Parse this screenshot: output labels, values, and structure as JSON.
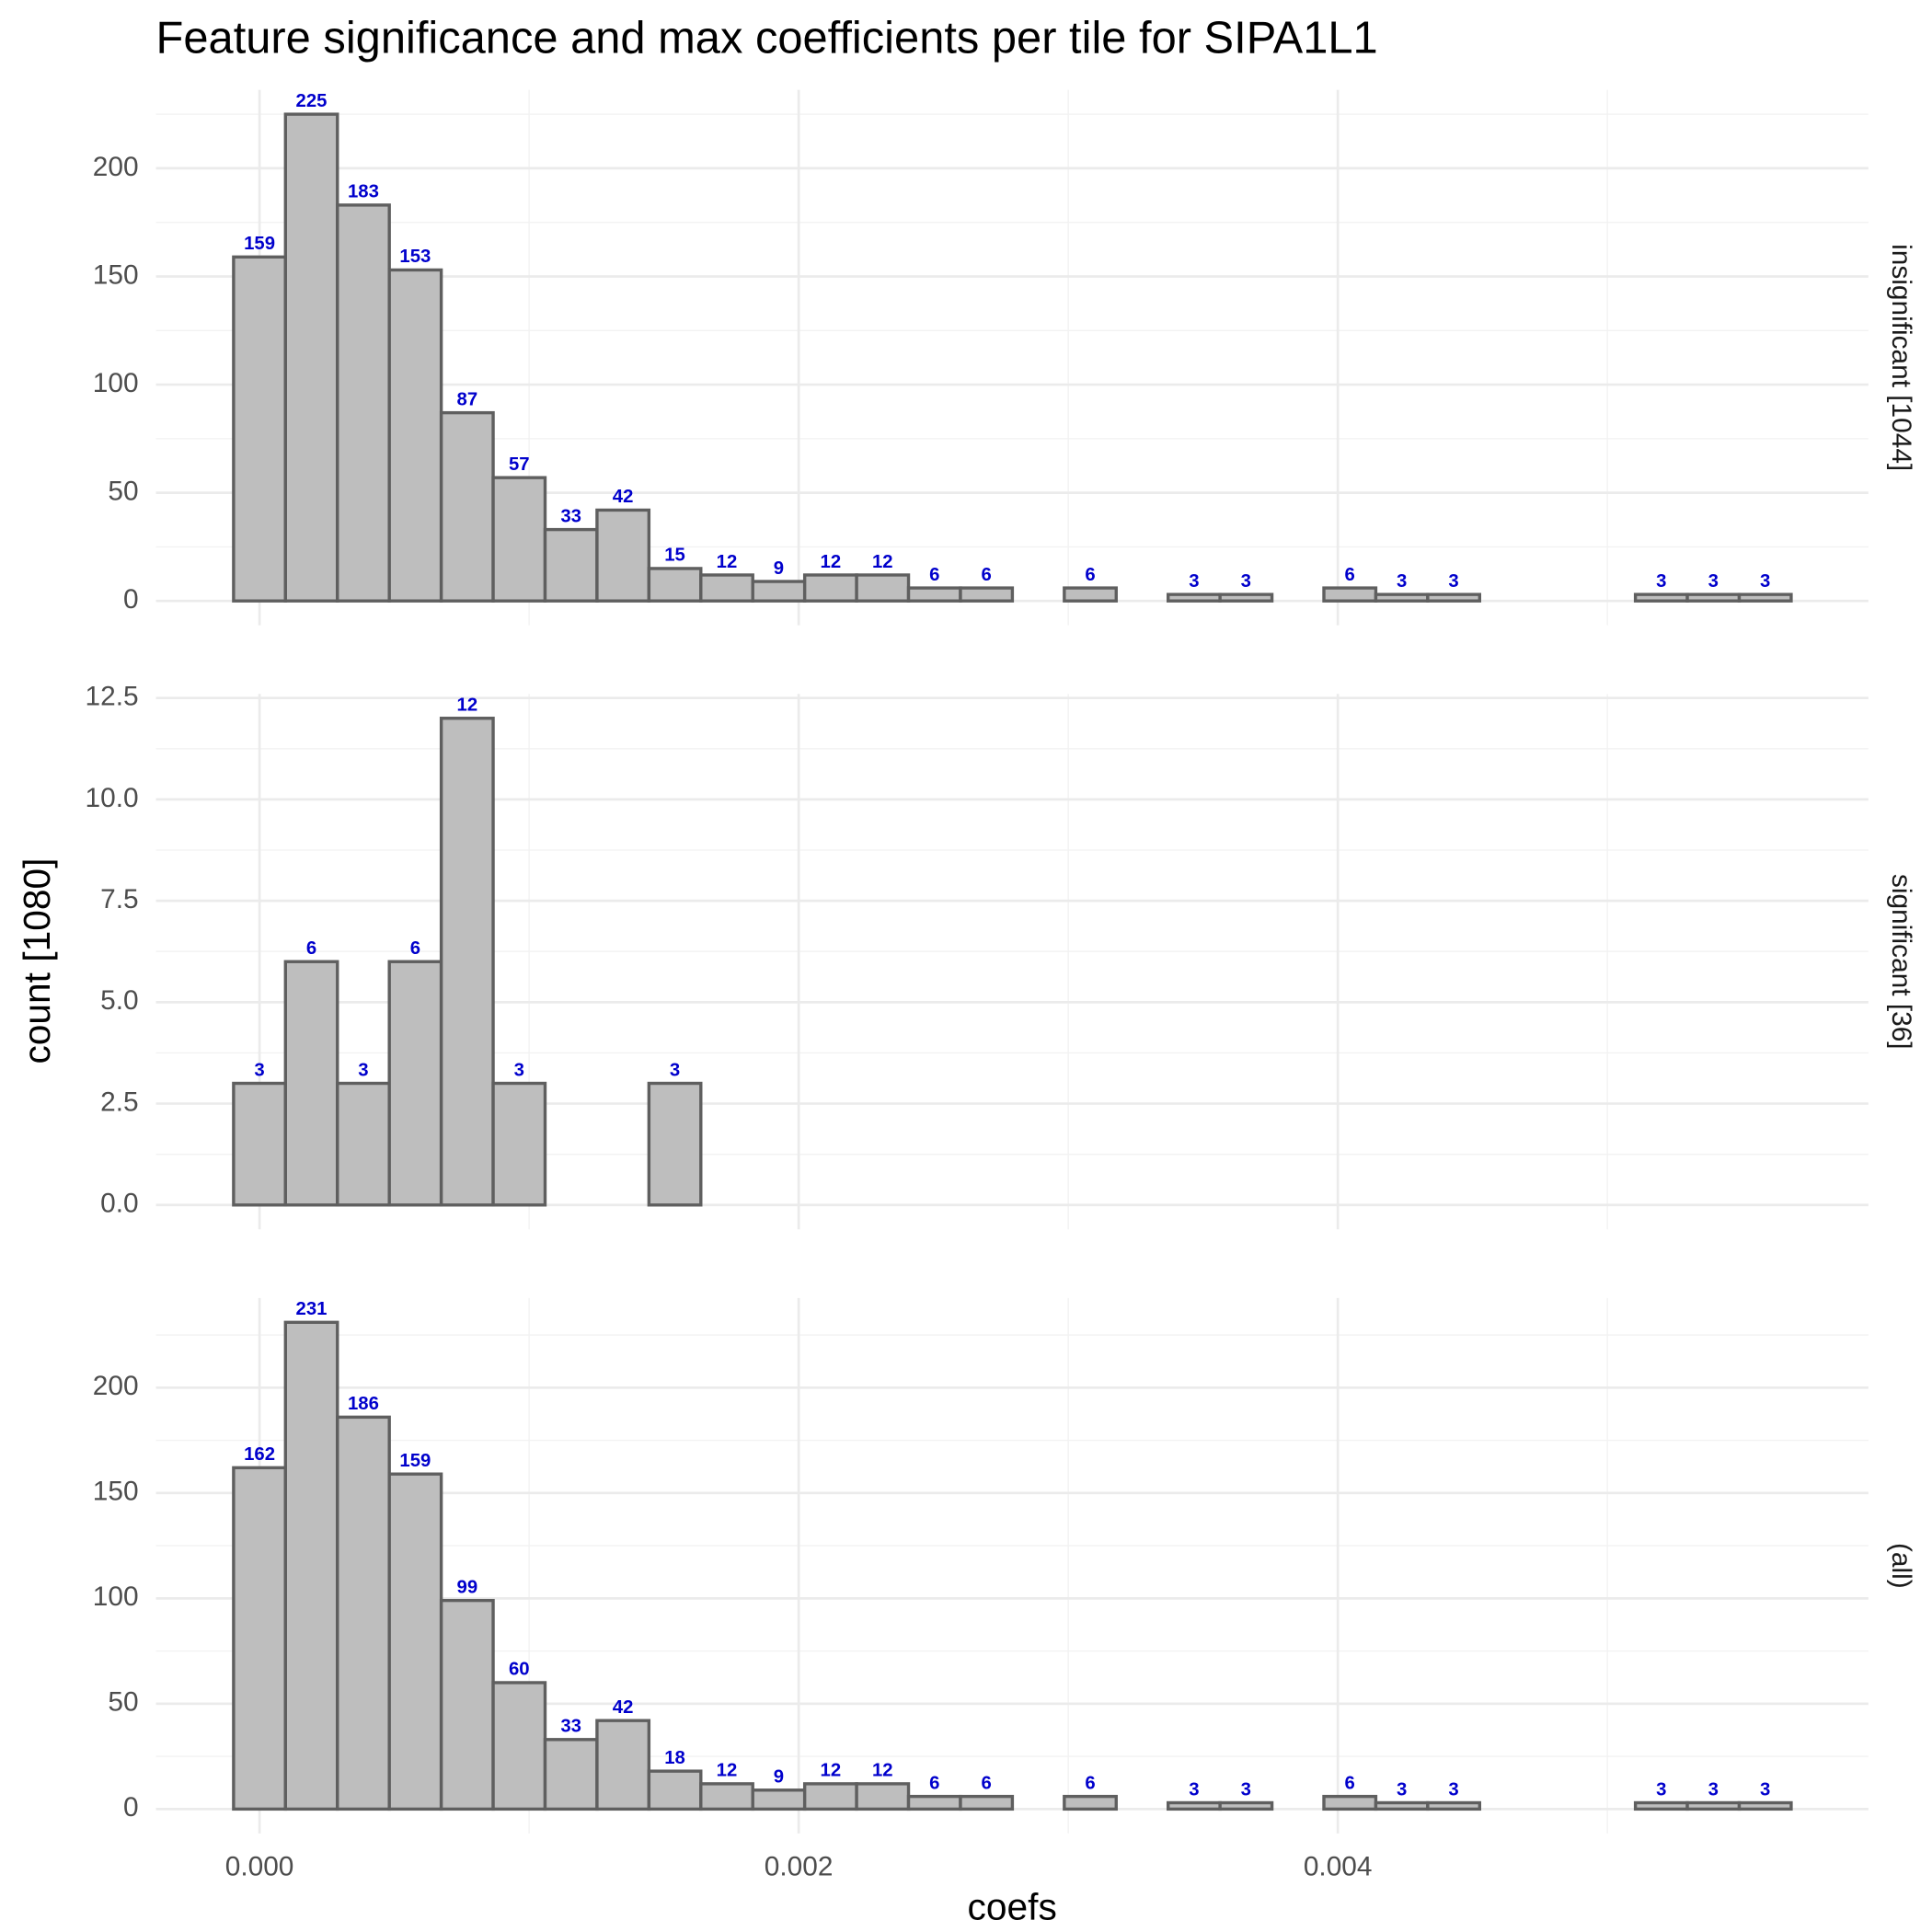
{
  "title": "Feature significance and max coefficients per tile for SIPA1L1",
  "x_label": "coefs",
  "y_label": "count [1080]",
  "xlim": [
    -0.000384,
    0.005968
  ],
  "xticks": [
    {
      "value": 0,
      "label": "0.000"
    },
    {
      "value": 0.002,
      "label": "0.002"
    },
    {
      "value": 0.004,
      "label": "0.004"
    }
  ],
  "x_minor_ticks": [
    0.001,
    0.003,
    0.005
  ],
  "grid": true,
  "chart_data": [
    {
      "type": "histogram",
      "facet_label": "insignificant [1044]",
      "bins": [
        -9.63e-05,
        9.63e-05,
        0.0002889,
        0.0004815,
        0.0006741,
        0.0008667,
        0.0010593,
        0.0012519,
        0.0014445,
        0.0016371,
        0.0018297,
        0.0020223,
        0.0022149,
        0.0024075,
        0.0026001,
        0.0027927,
        0.0029853,
        0.0031779,
        0.0033705,
        0.0035631,
        0.0037557,
        0.0039483,
        0.0041409,
        0.0043335,
        0.0045261,
        0.0047187,
        0.0049113,
        0.0051039,
        0.0052965,
        0.0054891,
        0.0056817
      ],
      "values": [
        159,
        225,
        183,
        153,
        87,
        57,
        33,
        42,
        15,
        12,
        9,
        12,
        12,
        6,
        6,
        0,
        6,
        0,
        3,
        3,
        0,
        6,
        3,
        3,
        0,
        0,
        0,
        3,
        3,
        3
      ],
      "color": "#bebebe",
      "edge_color": "#5f5f5f",
      "label_color": "#0000cc",
      "ylim": [
        -11.25,
        236.25
      ],
      "yticks": [
        0,
        50,
        100,
        150,
        200
      ],
      "y_minor_ticks": [
        25,
        75,
        125,
        175,
        225
      ]
    },
    {
      "type": "histogram",
      "facet_label": "significant [36]",
      "bins": [
        -9.63e-05,
        9.63e-05,
        0.0002889,
        0.0004815,
        0.0006741,
        0.0008667,
        0.0010593,
        0.0012519,
        0.0014445,
        0.0016371,
        0.0018297,
        0.0020223,
        0.0022149,
        0.0024075,
        0.0026001,
        0.0027927,
        0.0029853,
        0.0031779,
        0.0033705,
        0.0035631,
        0.0037557,
        0.0039483,
        0.0041409,
        0.0043335,
        0.0045261,
        0.0047187,
        0.0049113,
        0.0051039,
        0.0052965,
        0.0054891,
        0.0056817
      ],
      "values": [
        3,
        6,
        3,
        6,
        12,
        3,
        0,
        0,
        3,
        0,
        0,
        0,
        0,
        0,
        0,
        0,
        0,
        0,
        0,
        0,
        0,
        0,
        0,
        0,
        0,
        0,
        0,
        0,
        0,
        0
      ],
      "color": "#bebebe",
      "edge_color": "#5f5f5f",
      "label_color": "#0000cc",
      "ylim": [
        -0.6,
        12.6
      ],
      "yticks": [
        {
          "value": 0,
          "label": "0.0"
        },
        2.5,
        {
          "value": 5,
          "label": "5.0"
        },
        7.5,
        {
          "value": 10,
          "label": "10.0"
        },
        12.5
      ],
      "y_minor_ticks": [
        1.25,
        3.75,
        6.25,
        8.75,
        11.25
      ]
    },
    {
      "type": "histogram",
      "facet_label": "(all)",
      "bins": [
        -9.63e-05,
        9.63e-05,
        0.0002889,
        0.0004815,
        0.0006741,
        0.0008667,
        0.0010593,
        0.0012519,
        0.0014445,
        0.0016371,
        0.0018297,
        0.0020223,
        0.0022149,
        0.0024075,
        0.0026001,
        0.0027927,
        0.0029853,
        0.0031779,
        0.0033705,
        0.0035631,
        0.0037557,
        0.0039483,
        0.0041409,
        0.0043335,
        0.0045261,
        0.0047187,
        0.0049113,
        0.0051039,
        0.0052965,
        0.0054891,
        0.0056817
      ],
      "values": [
        162,
        231,
        186,
        159,
        99,
        60,
        33,
        42,
        18,
        12,
        9,
        12,
        12,
        6,
        6,
        0,
        6,
        0,
        3,
        3,
        0,
        6,
        3,
        3,
        0,
        0,
        0,
        3,
        3,
        3
      ],
      "color": "#bebebe",
      "edge_color": "#5f5f5f",
      "label_color": "#0000cc",
      "ylim": [
        -11.55,
        242.55
      ],
      "yticks": [
        0,
        50,
        100,
        150,
        200
      ],
      "y_minor_ticks": [
        25,
        75,
        125,
        175,
        225
      ]
    }
  ]
}
